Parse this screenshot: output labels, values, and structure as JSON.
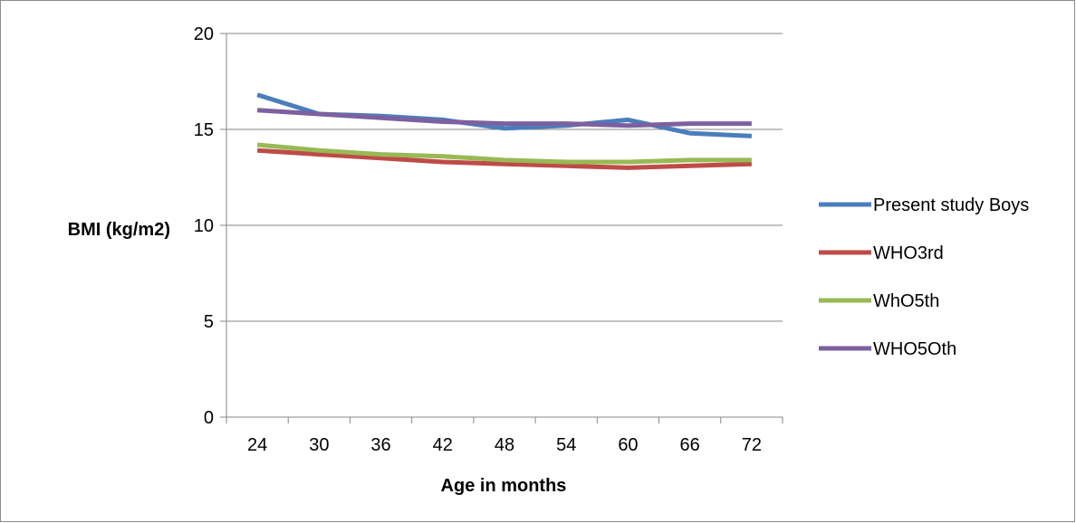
{
  "chart_data": {
    "type": "line",
    "xlabel": "Age in months",
    "ylabel": "BMI (kg/m2)",
    "ylim": [
      0,
      20
    ],
    "yticks": [
      0,
      5,
      10,
      15,
      20
    ],
    "categories": [
      "24",
      "30",
      "36",
      "42",
      "48",
      "54",
      "60",
      "66",
      "72"
    ],
    "grid": true,
    "legend_position": "right",
    "series": [
      {
        "name": "Present study Boys",
        "color": "#4a7ebb",
        "values": [
          16.8,
          15.8,
          15.7,
          15.5,
          15.05,
          15.2,
          15.5,
          14.8,
          14.65
        ]
      },
      {
        "name": "WHO3rd",
        "color": "#be4b48",
        "values": [
          13.9,
          13.7,
          13.5,
          13.3,
          13.2,
          13.1,
          13.0,
          13.1,
          13.2
        ]
      },
      {
        "name": "WhO5th",
        "color": "#98b954",
        "values": [
          14.2,
          13.9,
          13.7,
          13.6,
          13.4,
          13.3,
          13.3,
          13.4,
          13.4
        ]
      },
      {
        "name": "WHO5Oth",
        "color": "#7d60a0",
        "values": [
          16.0,
          15.8,
          15.6,
          15.4,
          15.3,
          15.3,
          15.2,
          15.3,
          15.3
        ]
      }
    ]
  }
}
